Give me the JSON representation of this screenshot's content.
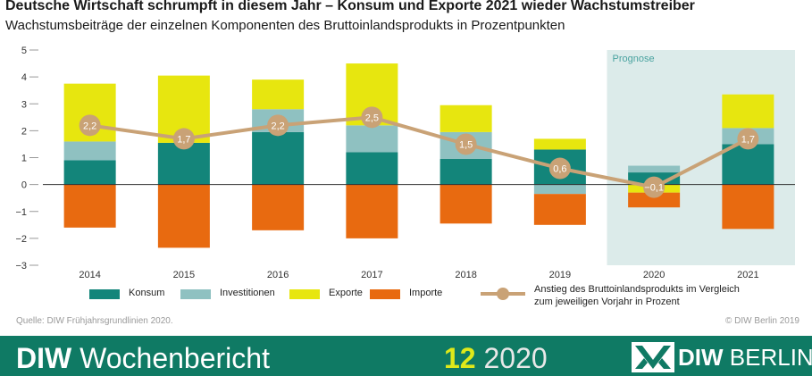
{
  "header": {
    "title": "Deutsche Wirtschaft schrumpft in diesem Jahr – Konsum und Exporte 2021 wieder Wachstumstreiber",
    "subtitle": "Wachstumsbeiträge der einzelnen Komponenten des Bruttoinlandsprodukts in Prozentpunkten"
  },
  "chart_data": {
    "type": "bar",
    "stacked": true,
    "categories": [
      "2014",
      "2015",
      "2016",
      "2017",
      "2018",
      "2019",
      "2020",
      "2021"
    ],
    "ylim": [
      -3,
      5
    ],
    "yticks": [
      5,
      4,
      3,
      2,
      1,
      0,
      -1,
      -2,
      -3
    ],
    "ytick_labels": [
      "5",
      "4",
      "3",
      "2",
      "1",
      "0",
      "−1",
      "−2",
      "−3"
    ],
    "forecast": {
      "label": "Prognose",
      "categories": [
        "2020",
        "2021"
      ]
    },
    "series": [
      {
        "name": "Konsum",
        "color": "#13857a",
        "values": [
          0.9,
          1.55,
          1.95,
          1.2,
          0.95,
          1.3,
          0.45,
          1.5
        ]
      },
      {
        "name": "Investitionen",
        "color": "#8fc1c1",
        "values": [
          0.7,
          0.0,
          0.85,
          1.0,
          1.0,
          -0.35,
          0.25,
          0.6
        ]
      },
      {
        "name": "Exporte",
        "color": "#e7e60f",
        "values": [
          2.15,
          2.5,
          1.1,
          2.3,
          1.0,
          0.4,
          -0.3,
          1.25
        ]
      },
      {
        "name": "Importe",
        "color": "#e86a10",
        "values": [
          -1.6,
          -2.35,
          -1.7,
          -2.0,
          -1.45,
          -1.15,
          -0.55,
          -1.65
        ]
      }
    ],
    "line": {
      "name": "Anstieg des Bruttoinlandsprodukts im Vergleich zum jeweiligen Vorjahr in Prozent",
      "name_lines": [
        "Anstieg des Bruttoinlandsprodukts im Vergleich",
        "zum jeweiligen Vorjahr in Prozent"
      ],
      "color": "#c9a276",
      "values": [
        2.2,
        1.7,
        2.2,
        2.5,
        1.5,
        0.6,
        -0.1,
        1.7
      ],
      "labels": [
        "2,2",
        "1,7",
        "2,2",
        "2,5",
        "1,5",
        "0,6",
        "−0,1",
        "1,7"
      ]
    }
  },
  "footer": {
    "source": "Quelle: DIW Frühjahrsgrundlinien 2020.",
    "copyright": "© DIW Berlin 2019",
    "brand_bold": "DIW",
    "brand_rest": " Wochenbericht",
    "issue_number": "12",
    "issue_year": "2020",
    "logo_bold": "DIW",
    "logo_rest": " BERLIN"
  }
}
